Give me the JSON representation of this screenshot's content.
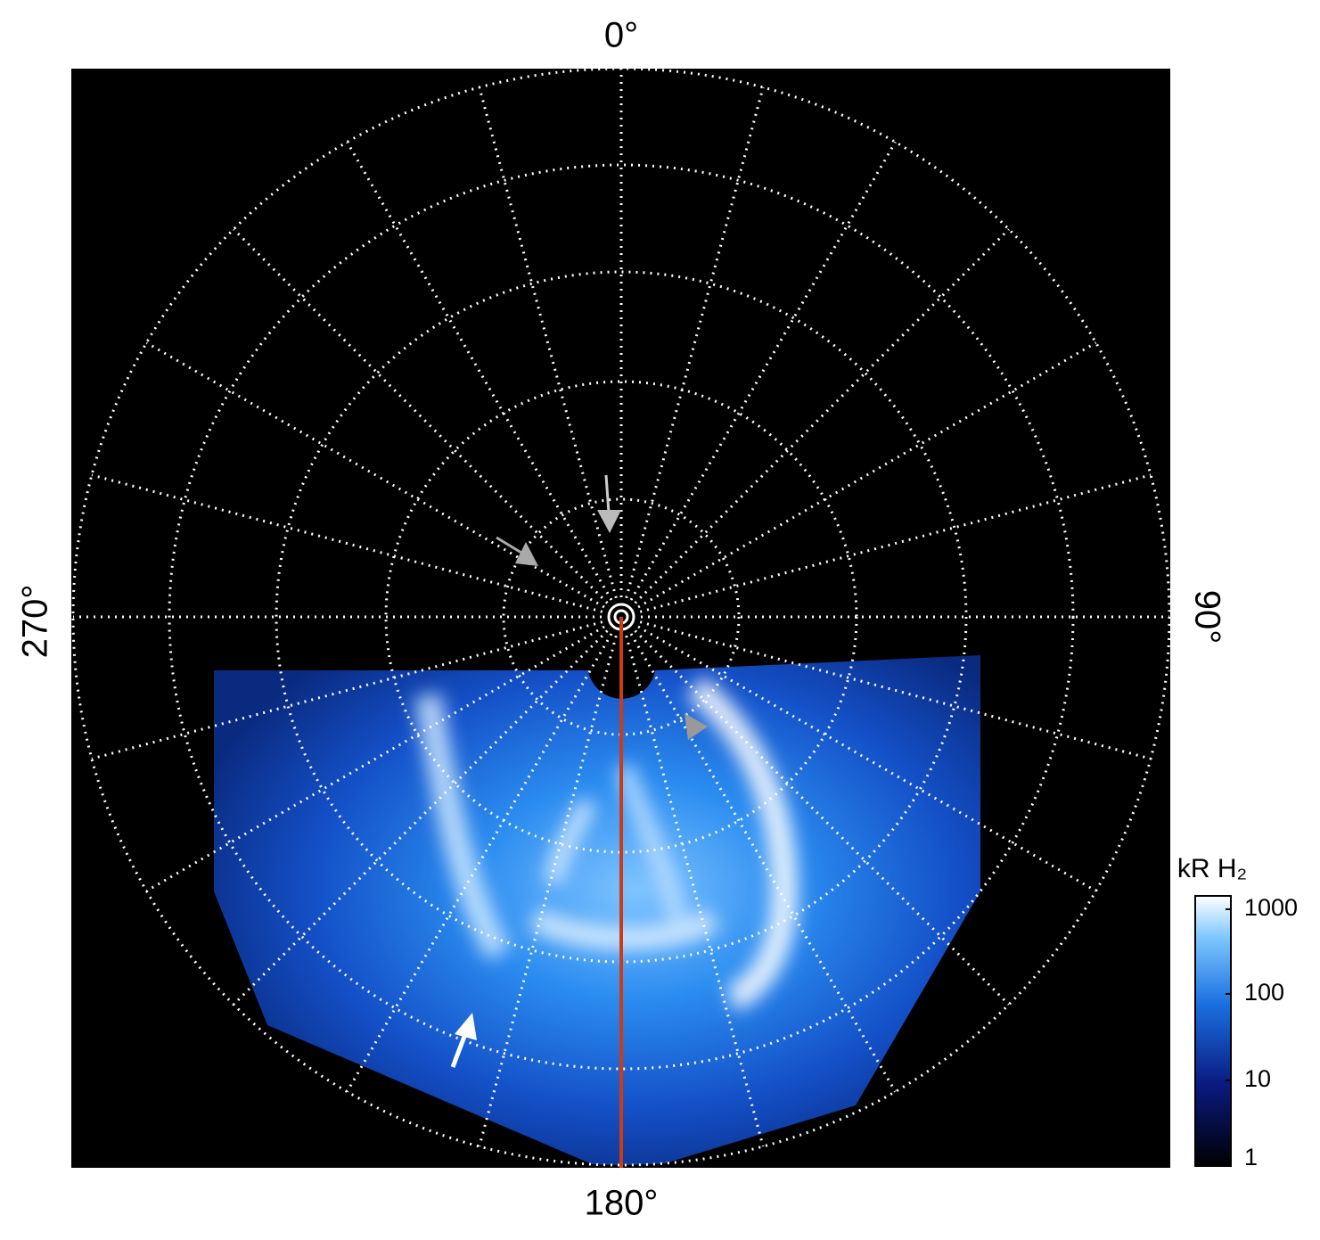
{
  "axis_labels": {
    "top": "0°",
    "right": "90°",
    "bottom": "180°",
    "left": "270°"
  },
  "colorbar": {
    "title": "kR H₂",
    "ticks": [
      1000,
      100,
      10,
      1
    ]
  }
}
